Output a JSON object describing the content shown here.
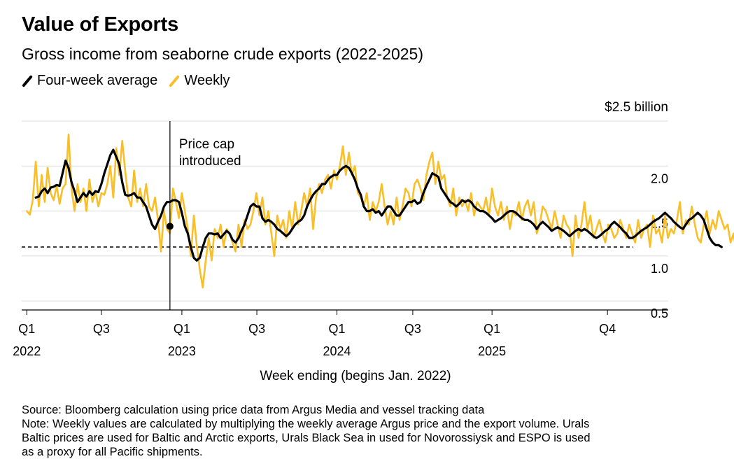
{
  "title": "Value of Exports",
  "subtitle": "Gross income from seaborne crude exports (2022-2025)",
  "legend": [
    {
      "label": "Four-week average",
      "color": "#000000"
    },
    {
      "label": "Weekly",
      "color": "#f9bf2a"
    }
  ],
  "footer": {
    "source": "Source: Bloomberg calculation using price data from Argus Media and vessel tracking data",
    "note_lines": [
      "Note: Weekly values are calculated by multiplying the weekly average Argus price and the export volume. Urals",
      "Baltic prices are used for Baltic and Arctic exports, Urals Black Sea in used for Novorossiysk and ESPO is used",
      "as a proxy for all Pacific shipments."
    ]
  },
  "chart_data": {
    "type": "line",
    "xlabel": "Week ending (begins Jan. 2022)",
    "y_unit_label": "$2.5 billion",
    "ylim": [
      0.4,
      2.5
    ],
    "y_ticks": [
      0.5,
      1.0,
      1.5,
      2.0,
      2.5
    ],
    "y_tick_labels": [
      "0.5",
      "1.0",
      "1.5",
      "2.0",
      ""
    ],
    "x_range": [
      "2021-12-26",
      "2025-12-12"
    ],
    "x_ticks": [
      {
        "date": "2022-01-07",
        "label": [
          "Q1",
          "2022"
        ]
      },
      {
        "date": "2022-07-01",
        "label": [
          "Q3",
          ""
        ]
      },
      {
        "date": "2023-01-06",
        "label": [
          "Q1",
          "2023"
        ]
      },
      {
        "date": "2023-07-01",
        "label": [
          "Q3",
          ""
        ]
      },
      {
        "date": "2024-01-05",
        "label": [
          "Q1",
          "2024"
        ]
      },
      {
        "date": "2024-07-01",
        "label": [
          "Q3",
          ""
        ]
      },
      {
        "date": "2025-01-03",
        "label": [
          "Q1",
          "2025"
        ]
      },
      {
        "date": "2025-10-01",
        "label": [
          "Q4",
          ""
        ]
      }
    ],
    "grid": true,
    "reference_line": {
      "value": 1.1,
      "style": "dashed"
    },
    "annotation": {
      "date": "2022-12-09",
      "lines": [
        "Price cap",
        "introduced"
      ],
      "marker_value": 1.33
    },
    "series": [
      {
        "name": "Weekly",
        "color": "#f9bf2a",
        "start": "2022-01-07",
        "interval_days": 7,
        "values": [
          1.5,
          1.46,
          1.62,
          2.05,
          1.55,
          1.9,
          1.6,
          1.98,
          1.7,
          1.62,
          1.78,
          1.58,
          1.75,
          1.8,
          2.35,
          1.75,
          1.5,
          1.8,
          1.6,
          1.75,
          1.5,
          1.85,
          1.6,
          1.72,
          1.55,
          1.7,
          1.68,
          1.8,
          2.0,
          1.65,
          2.2,
          1.9,
          2.28,
          1.95,
          1.65,
          1.55,
          1.95,
          1.6,
          1.75,
          1.55,
          1.8,
          1.55,
          1.5,
          1.65,
          1.4,
          1.05,
          1.5,
          1.3,
          1.25,
          1.75,
          1.6,
          1.42,
          1.7,
          1.5,
          1.3,
          1.0,
          1.45,
          1.12,
          0.85,
          0.65,
          0.95,
          1.2,
          0.95,
          1.3,
          1.2,
          1.35,
          1.1,
          1.3,
          1.25,
          1.15,
          1.05,
          1.35,
          1.1,
          1.4,
          1.3,
          1.35,
          1.5,
          1.7,
          1.45,
          1.65,
          1.35,
          1.5,
          1.25,
          1.0,
          1.45,
          1.3,
          1.4,
          1.2,
          1.5,
          1.3,
          1.6,
          1.35,
          1.5,
          1.7,
          1.55,
          1.75,
          1.3,
          1.65,
          1.8,
          1.7,
          1.85,
          1.9,
          1.75,
          1.95,
          1.85,
          2.0,
          2.22,
          1.9,
          2.15,
          1.9,
          2.0,
          1.7,
          1.65,
          1.55,
          1.7,
          1.4,
          1.6,
          1.5,
          1.6,
          1.8,
          1.55,
          1.35,
          1.5,
          1.35,
          1.65,
          1.4,
          1.55,
          1.75,
          1.7,
          1.55,
          1.8,
          1.85,
          1.75,
          1.62,
          1.9,
          2.05,
          2.15,
          1.8,
          2.05,
          1.85,
          1.9,
          1.65,
          1.55,
          1.75,
          1.45,
          1.65,
          1.55,
          1.62,
          1.5,
          1.7,
          1.45,
          1.6,
          1.55,
          1.5,
          1.65,
          1.45,
          1.75,
          1.55,
          1.45,
          1.6,
          1.4,
          1.55,
          1.3,
          1.5,
          1.45,
          1.6,
          1.4,
          1.55,
          1.62,
          1.45,
          1.6,
          1.25,
          1.35,
          1.55,
          1.5,
          1.4,
          1.3,
          1.5,
          1.35,
          1.2,
          1.45,
          1.35,
          1.3,
          1.0,
          1.45,
          1.2,
          1.35,
          1.6,
          1.3,
          1.45,
          1.2,
          1.3,
          1.4,
          1.25,
          1.15,
          1.35,
          1.3,
          1.2,
          1.25,
          1.4,
          1.3,
          1.2,
          1.35,
          1.25,
          1.15,
          1.4,
          1.2,
          1.3,
          1.35,
          1.1,
          1.45,
          1.25,
          1.3,
          1.15,
          1.45,
          1.2,
          1.3,
          1.25,
          1.4,
          1.6,
          1.25,
          1.4,
          1.35,
          1.55,
          1.35,
          1.2,
          1.15,
          1.35,
          1.5,
          1.25,
          1.4,
          1.3,
          1.5,
          1.4,
          1.3,
          1.35,
          1.15,
          1.25,
          1.02,
          1.1,
          1.0,
          1.2,
          1.25,
          0.85
        ]
      },
      {
        "name": "Four-week average",
        "color": "#000000",
        "start": "2022-01-28",
        "interval_days": 7,
        "values": [
          1.65,
          1.66,
          1.72,
          1.75,
          1.7,
          1.76,
          1.77,
          1.79,
          1.78,
          1.92,
          2.06,
          1.98,
          1.82,
          1.72,
          1.6,
          1.65,
          1.7,
          1.66,
          1.72,
          1.68,
          1.72,
          1.71,
          1.8,
          1.92,
          2.02,
          2.12,
          2.18,
          2.1,
          2.02,
          1.82,
          1.68,
          1.67,
          1.68,
          1.7,
          1.65,
          1.65,
          1.6,
          1.55,
          1.45,
          1.35,
          1.3,
          1.38,
          1.45,
          1.55,
          1.6,
          1.6,
          1.62,
          1.62,
          1.6,
          1.48,
          1.33,
          1.25,
          1.1,
          0.98,
          0.95,
          0.98,
          1.1,
          1.2,
          1.25,
          1.25,
          1.24,
          1.25,
          1.2,
          1.24,
          1.28,
          1.25,
          1.18,
          1.15,
          1.2,
          1.28,
          1.35,
          1.45,
          1.55,
          1.58,
          1.55,
          1.55,
          1.42,
          1.38,
          1.4,
          1.38,
          1.35,
          1.3,
          1.28,
          1.25,
          1.22,
          1.25,
          1.3,
          1.35,
          1.38,
          1.4,
          1.45,
          1.55,
          1.62,
          1.68,
          1.72,
          1.75,
          1.8,
          1.8,
          1.85,
          1.88,
          1.9,
          1.9,
          1.95,
          1.98,
          2.0,
          1.98,
          1.92,
          1.85,
          1.75,
          1.68,
          1.55,
          1.5,
          1.5,
          1.52,
          1.48,
          1.5,
          1.45,
          1.5,
          1.55,
          1.55,
          1.5,
          1.45,
          1.45,
          1.5,
          1.55,
          1.6,
          1.6,
          1.62,
          1.58,
          1.6,
          1.7,
          1.78,
          1.85,
          1.92,
          1.9,
          1.88,
          1.75,
          1.7,
          1.65,
          1.6,
          1.58,
          1.55,
          1.58,
          1.62,
          1.6,
          1.62,
          1.6,
          1.55,
          1.52,
          1.5,
          1.5,
          1.48,
          1.45,
          1.42,
          1.38,
          1.4,
          1.42,
          1.45,
          1.48,
          1.5,
          1.5,
          1.48,
          1.45,
          1.42,
          1.4,
          1.4,
          1.38,
          1.35,
          1.3,
          1.35,
          1.38,
          1.35,
          1.32,
          1.28,
          1.3,
          1.32,
          1.3,
          1.28,
          1.25,
          1.22,
          1.25,
          1.28,
          1.3,
          1.28,
          1.3,
          1.28,
          1.25,
          1.22,
          1.2,
          1.22,
          1.25,
          1.28,
          1.3,
          1.35,
          1.38,
          1.35,
          1.32,
          1.28,
          1.25,
          1.2,
          1.2,
          1.22,
          1.25,
          1.28,
          1.3,
          1.32,
          1.35,
          1.38,
          1.4,
          1.42,
          1.45,
          1.48,
          1.45,
          1.42,
          1.38,
          1.35,
          1.32,
          1.3,
          1.35,
          1.4,
          1.42,
          1.45,
          1.48,
          1.45,
          1.4,
          1.3,
          1.2,
          1.15,
          1.12,
          1.12,
          1.1
        ]
      }
    ]
  }
}
